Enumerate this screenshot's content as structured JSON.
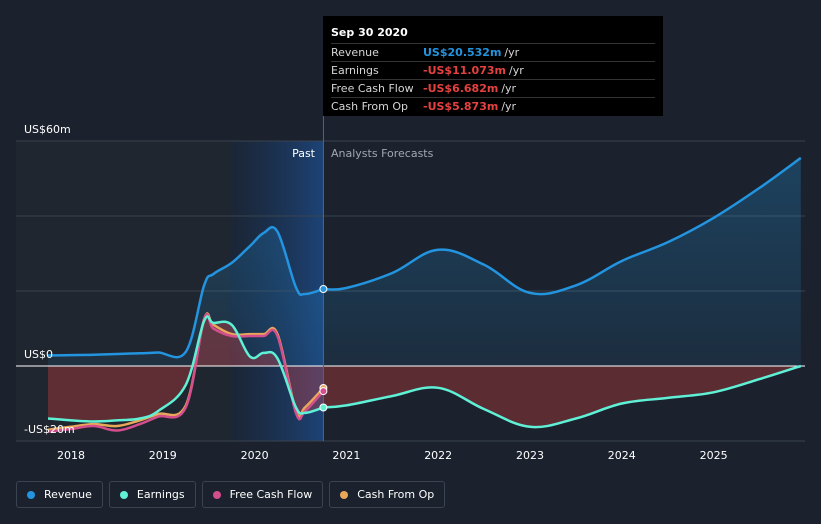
{
  "chart_data": {
    "type": "line",
    "title": "",
    "y_axis": {
      "top_label": "US$60m",
      "zero_label": "US$0",
      "bottom_label": "-US$20m",
      "ylim": [
        -20,
        60
      ],
      "unit": "US$m"
    },
    "x_axis": {
      "ticks": [
        "2018",
        "2019",
        "2020",
        "2021",
        "2022",
        "2023",
        "2024",
        "2025"
      ],
      "xlim": [
        2017.75,
        2025.95
      ]
    },
    "regions": {
      "past_label": "Past",
      "forecast_label": "Analysts Forecasts",
      "divider_x": 2020.75
    },
    "series": [
      {
        "name": "Revenue",
        "color": "#2394df",
        "x": [
          2017.75,
          2018.0,
          2018.25,
          2018.5,
          2018.75,
          2018.95,
          2019.25,
          2019.45,
          2019.55,
          2019.75,
          2019.95,
          2020.1,
          2020.25,
          2020.45,
          2020.55,
          2020.75
        ],
        "y": [
          2.8,
          2.9,
          3.0,
          3.2,
          3.4,
          3.6,
          3.8,
          21.5,
          24.5,
          27.5,
          32.0,
          35.5,
          35.8,
          21.0,
          19.2,
          20.532
        ],
        "forecast_x": [
          2020.75,
          2021.0,
          2021.5,
          2022.0,
          2022.5,
          2023.0,
          2023.5,
          2024.0,
          2024.5,
          2025.0,
          2025.5,
          2025.95
        ],
        "forecast_y": [
          20.532,
          20.8,
          24.8,
          31.0,
          27.0,
          19.5,
          21.5,
          28.0,
          33.0,
          39.5,
          47.5,
          55.5
        ]
      },
      {
        "name": "Earnings",
        "color": "#5ff0d6",
        "x": [
          2017.75,
          2018.0,
          2018.25,
          2018.5,
          2018.75,
          2018.95,
          2019.25,
          2019.45,
          2019.55,
          2019.75,
          2019.95,
          2020.1,
          2020.25,
          2020.45,
          2020.55,
          2020.75
        ],
        "y": [
          -14.0,
          -14.5,
          -14.8,
          -14.5,
          -14.0,
          -12.0,
          -5.0,
          12.0,
          11.5,
          11.0,
          2.5,
          3.5,
          2.0,
          -11.0,
          -12.5,
          -11.073
        ],
        "forecast_x": [
          2020.75,
          2021.0,
          2021.5,
          2022.0,
          2022.5,
          2023.0,
          2023.5,
          2024.0,
          2024.5,
          2025.0,
          2025.5,
          2025.95
        ],
        "forecast_y": [
          -11.073,
          -10.5,
          -8.0,
          -5.8,
          -11.5,
          -16.2,
          -14.0,
          -10.0,
          -8.5,
          -7.0,
          -3.5,
          0.0
        ]
      },
      {
        "name": "Free Cash Flow",
        "color": "#d44e8d",
        "x": [
          2017.75,
          2018.0,
          2018.25,
          2018.5,
          2018.75,
          2018.95,
          2019.25,
          2019.45,
          2019.55,
          2019.75,
          2019.95,
          2020.1,
          2020.25,
          2020.45,
          2020.55,
          2020.75
        ],
        "y": [
          -17.5,
          -16.8,
          -16.0,
          -17.2,
          -15.5,
          -13.5,
          -11.0,
          12.5,
          10.0,
          8.0,
          8.0,
          8.0,
          8.0,
          -12.5,
          -12.0,
          -6.682
        ],
        "forecast_x": [],
        "forecast_y": []
      },
      {
        "name": "Cash From Op",
        "color": "#e9a75a",
        "x": [
          2017.75,
          2018.0,
          2018.25,
          2018.5,
          2018.75,
          2018.95,
          2019.25,
          2019.45,
          2019.55,
          2019.75,
          2019.95,
          2020.1,
          2020.25,
          2020.45,
          2020.55,
          2020.75
        ],
        "y": [
          -17.0,
          -16.2,
          -15.5,
          -16.0,
          -14.5,
          -12.8,
          -10.5,
          12.5,
          11.0,
          8.5,
          8.5,
          8.5,
          8.5,
          -12.0,
          -11.0,
          -5.873
        ],
        "forecast_x": [],
        "forecast_y": []
      }
    ]
  },
  "tooltip": {
    "date": "Sep 30 2020",
    "rows": [
      {
        "name": "Revenue",
        "value": "US$20.532m",
        "unit": "/yr",
        "color": "#2394df"
      },
      {
        "name": "Earnings",
        "value": "-US$11.073m",
        "unit": "/yr",
        "color": "#e64141"
      },
      {
        "name": "Free Cash Flow",
        "value": "-US$6.682m",
        "unit": "/yr",
        "color": "#e64141"
      },
      {
        "name": "Cash From Op",
        "value": "-US$5.873m",
        "unit": "/yr",
        "color": "#e64141"
      }
    ]
  },
  "legend": [
    {
      "label": "Revenue",
      "color": "#2394df"
    },
    {
      "label": "Earnings",
      "color": "#5ff0d6"
    },
    {
      "label": "Free Cash Flow",
      "color": "#d44e8d"
    },
    {
      "label": "Cash From Op",
      "color": "#e9a75a"
    }
  ]
}
